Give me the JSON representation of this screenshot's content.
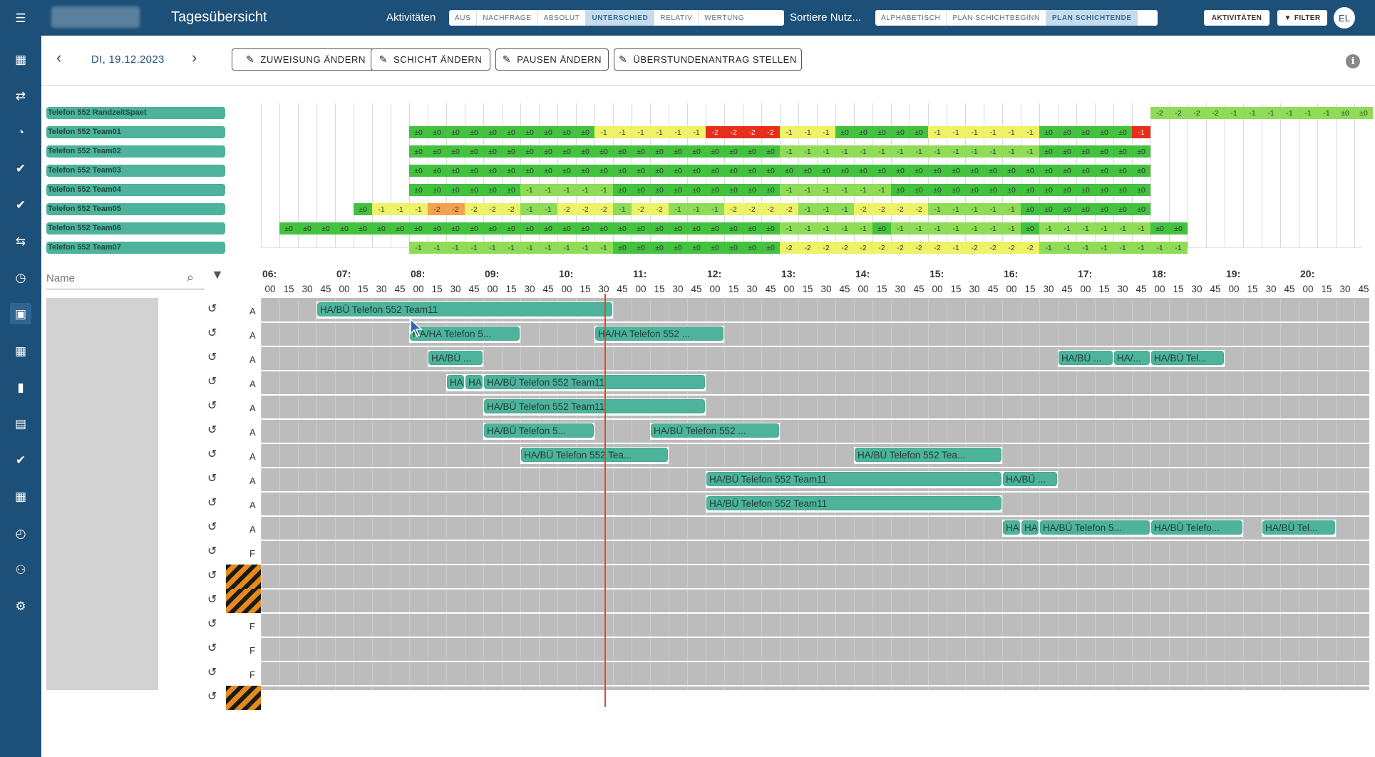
{
  "colors": {
    "primary": "#1d5079",
    "bar": "#4db39a",
    "now_line": "#e0492b",
    "green": "#43c23f",
    "lightgreen": "#8fdc56",
    "yellow": "#eef266",
    "orange": "#f59d4a",
    "red": "#e62e1b"
  },
  "sidebar": {
    "icons": [
      "menu-icon",
      "calendar-icon",
      "swap-people-icon",
      "person-clock-icon",
      "check-circle-icon",
      "check-circle-icon",
      "transfer-icon",
      "clock-icon",
      "calendar-day-icon",
      "calendar-icon",
      "bar-chart-icon",
      "clipboard-icon",
      "check-circle-icon",
      "calendar-grid-icon",
      "calendar-clock-icon",
      "group-icon",
      "settings-icon"
    ]
  },
  "topbar": {
    "title": "Tagesübersicht",
    "aktivitaeten_label": "Aktivitäten",
    "mode_buttons": [
      "AUS",
      "NACHFRAGE",
      "ABSOLUT",
      "UNTERSCHIED",
      "RELATIV",
      "WERTUNG"
    ],
    "mode_selected": "UNTERSCHIED",
    "sort_label": "Sortiere Nutz...",
    "sort_buttons": [
      "ALPHABETISCH",
      "PLAN SCHICHTBEGINN",
      "PLAN SCHICHTENDE"
    ],
    "sort_selected": "PLAN SCHICHTENDE",
    "activities_button": "AKTIVITÄTEN",
    "filter_button": "FILTER",
    "avatar": "EL"
  },
  "toolbar": {
    "date": "DI, 19.12.2023",
    "actions": [
      "ZUWEISUNG ÄNDERN",
      "SCHICHT ÄNDERN",
      "PAUSEN ÄNDERN",
      "ÜBERSTUNDENANTRAG STELLEN"
    ]
  },
  "demand": {
    "rows": [
      {
        "label": "Telefon 552 RandzeitSpaet",
        "start": 48,
        "values": [
          "-2",
          "-2",
          "-2",
          "-2",
          "-1",
          "-1",
          "-1",
          "-1",
          "-1",
          "-1",
          "±0",
          "±0"
        ]
      },
      {
        "label": "Telefon 552 Team01",
        "start": 8,
        "values": [
          "±0",
          "±0",
          "±0",
          "±0",
          "±0",
          "±0",
          "±0",
          "±0",
          "±0",
          "±0",
          "-1",
          "-1",
          "-1",
          "-1",
          "-1",
          "-1",
          "-2",
          "-2",
          "-2",
          "-2",
          "-1",
          "-1",
          "-1",
          "±0",
          "±0",
          "±0",
          "±0",
          "±0",
          "-1",
          "-1",
          "-1",
          "-1",
          "-1",
          "-1",
          "±0",
          "±0",
          "±0",
          "±0",
          "±0",
          "-1"
        ]
      },
      {
        "label": "Telefon 552 Team02",
        "start": 8,
        "values": [
          "±0",
          "±0",
          "±0",
          "±0",
          "±0",
          "±0",
          "±0",
          "±0",
          "±0",
          "±0",
          "±0",
          "±0",
          "±0",
          "±0",
          "±0",
          "±0",
          "±0",
          "±0",
          "±0",
          "±0",
          "-1",
          "-1",
          "-1",
          "-1",
          "-1",
          "-1",
          "-1",
          "-1",
          "-1",
          "-1",
          "-1",
          "-1",
          "-1",
          "-1",
          "±0",
          "±0",
          "±0",
          "±0",
          "±0",
          "±0"
        ]
      },
      {
        "label": "Telefon 552 Team03",
        "start": 8,
        "values": [
          "±0",
          "±0",
          "±0",
          "±0",
          "±0",
          "±0",
          "±0",
          "±0",
          "±0",
          "±0",
          "±0",
          "±0",
          "±0",
          "±0",
          "±0",
          "±0",
          "±0",
          "±0",
          "±0",
          "±0",
          "±0",
          "±0",
          "±0",
          "±0",
          "±0",
          "±0",
          "±0",
          "±0",
          "±0",
          "±0",
          "±0",
          "±0",
          "±0",
          "±0",
          "±0",
          "±0",
          "±0",
          "±0",
          "±0",
          "±0"
        ]
      },
      {
        "label": "Telefon 552 Team04",
        "start": 8,
        "values": [
          "±0",
          "±0",
          "±0",
          "±0",
          "±0",
          "±0",
          "-1",
          "-1",
          "-1",
          "-1",
          "-1",
          "±0",
          "±0",
          "±0",
          "±0",
          "±0",
          "±0",
          "±0",
          "±0",
          "±0",
          "-1",
          "-1",
          "-1",
          "-1",
          "-1",
          "-1",
          "±0",
          "±0",
          "±0",
          "±0",
          "±0",
          "±0",
          "±0",
          "±0",
          "±0",
          "±0",
          "±0",
          "±0",
          "±0",
          "±0"
        ]
      },
      {
        "label": "Telefon 552 Team05",
        "start": 5,
        "values": [
          "±0",
          "-1",
          "-1",
          "-1",
          "-2",
          "-2",
          "-2",
          "-2",
          "-2",
          "-1",
          "-1",
          "-2",
          "-2",
          "-2",
          "-1",
          "-2",
          "-2",
          "-1",
          "-1",
          "-1",
          "-2",
          "-2",
          "-2",
          "-2",
          "-1",
          "-1",
          "-1",
          "-2",
          "-2",
          "-2",
          "-2",
          "-1",
          "-1",
          "-1",
          "-1",
          "-1",
          "±0",
          "±0",
          "±0",
          "±0",
          "±0",
          "±0",
          "±0"
        ]
      },
      {
        "label": "Telefon 552 Team06",
        "start": 1,
        "values": [
          "±0",
          "±0",
          "±0",
          "±0",
          "±0",
          "±0",
          "±0",
          "±0",
          "±0",
          "±0",
          "±0",
          "±0",
          "±0",
          "±0",
          "±0",
          "±0",
          "±0",
          "±0",
          "±0",
          "±0",
          "±0",
          "±0",
          "±0",
          "±0",
          "±0",
          "±0",
          "±0",
          "-1",
          "-1",
          "-1",
          "-1",
          "-1",
          "±0",
          "-1",
          "-1",
          "-1",
          "-1",
          "-1",
          "-1",
          "-1",
          "±0",
          "-1",
          "-1",
          "-1",
          "-1",
          "-1",
          "-1",
          "±0",
          "±0"
        ]
      },
      {
        "label": "Telefon 552 Team07",
        "start": 8,
        "values": [
          "-1",
          "-1",
          "-1",
          "-1",
          "-1",
          "-1",
          "-1",
          "-1",
          "-1",
          "-1",
          "-1",
          "±0",
          "±0",
          "±0",
          "±0",
          "±0",
          "±0",
          "±0",
          "±0",
          "±0",
          "-2",
          "-2",
          "-2",
          "-2",
          "-2",
          "-2",
          "-2",
          "-2",
          "-2",
          "-1",
          "-2",
          "-2",
          "-2",
          "-2",
          "-1",
          "-1",
          "-1",
          "-1",
          "-1",
          "-1",
          "-1",
          "-1"
        ]
      }
    ]
  },
  "timeline": {
    "name_placeholder": "Name",
    "hours": [
      "06:",
      "07:",
      "08:",
      "09:",
      "10:",
      "11:",
      "12:",
      "13:",
      "14:",
      "15:",
      "16:",
      "17:",
      "18:",
      "19:",
      "20:"
    ],
    "minutes": [
      "00",
      "15",
      "30",
      "45"
    ],
    "rows": [
      {
        "type": "A",
        "hatch": false,
        "bars": [
          {
            "s": 3,
            "e": 19,
            "label": "HA/BÜ Telefon 552 Team11"
          }
        ]
      },
      {
        "type": "A",
        "hatch": false,
        "bars": [
          {
            "s": 8,
            "e": 14,
            "label": "HA/HA Telefon 5..."
          },
          {
            "s": 18,
            "e": 25,
            "label": "HA/HA Telefon 552 ..."
          }
        ]
      },
      {
        "type": "A",
        "hatch": false,
        "bars": [
          {
            "s": 9,
            "e": 12,
            "label": "HA/BÜ ..."
          },
          {
            "s": 43,
            "e": 46,
            "label": "HA/BÜ ..."
          },
          {
            "s": 46,
            "e": 48,
            "label": "HA/..."
          },
          {
            "s": 48,
            "e": 52,
            "label": "HA/BÜ Tel..."
          }
        ]
      },
      {
        "type": "A",
        "hatch": false,
        "bars": [
          {
            "s": 10,
            "e": 11,
            "label": "HA"
          },
          {
            "s": 11,
            "e": 12,
            "label": "HA"
          },
          {
            "s": 12,
            "e": 24,
            "label": "HA/BÜ Telefon 552 Team11"
          }
        ]
      },
      {
        "type": "A",
        "hatch": false,
        "bars": [
          {
            "s": 12,
            "e": 24,
            "label": "HA/BÜ Telefon 552 Team11"
          }
        ]
      },
      {
        "type": "A",
        "hatch": false,
        "bars": [
          {
            "s": 12,
            "e": 18,
            "label": "HA/BÜ Telefon 5..."
          },
          {
            "s": 21,
            "e": 28,
            "label": "HA/BÜ Telefon 552 ..."
          }
        ]
      },
      {
        "type": "A",
        "hatch": false,
        "bars": [
          {
            "s": 14,
            "e": 22,
            "label": "HA/BÜ Telefon 552 Tea..."
          },
          {
            "s": 32,
            "e": 40,
            "label": "HA/BÜ Telefon 552 Tea..."
          }
        ]
      },
      {
        "type": "A",
        "hatch": false,
        "bars": [
          {
            "s": 24,
            "e": 40,
            "label": "HA/BÜ Telefon 552 Team11"
          },
          {
            "s": 40,
            "e": 43,
            "label": "HA/BÜ ..."
          }
        ]
      },
      {
        "type": "A",
        "hatch": false,
        "bars": [
          {
            "s": 24,
            "e": 40,
            "label": "HA/BÜ Telefon 552 Team11"
          }
        ]
      },
      {
        "type": "A",
        "hatch": false,
        "bars": [
          {
            "s": 40,
            "e": 41,
            "label": "HA"
          },
          {
            "s": 41,
            "e": 42,
            "label": "HA"
          },
          {
            "s": 42,
            "e": 48,
            "label": "HA/BÜ Telefon 5..."
          },
          {
            "s": 48,
            "e": 53,
            "label": "HA/BÜ Telefo..."
          },
          {
            "s": 54,
            "e": 58,
            "label": "HA/BÜ Tel..."
          }
        ]
      },
      {
        "type": "F",
        "hatch": false,
        "bars": []
      },
      {
        "type": "",
        "hatch": true,
        "bars": []
      },
      {
        "type": "",
        "hatch": true,
        "bars": []
      },
      {
        "type": "F",
        "hatch": false,
        "bars": []
      },
      {
        "type": "F",
        "hatch": false,
        "bars": []
      },
      {
        "type": "F",
        "hatch": false,
        "bars": []
      },
      {
        "type": "",
        "hatch": true,
        "bars": []
      }
    ]
  }
}
